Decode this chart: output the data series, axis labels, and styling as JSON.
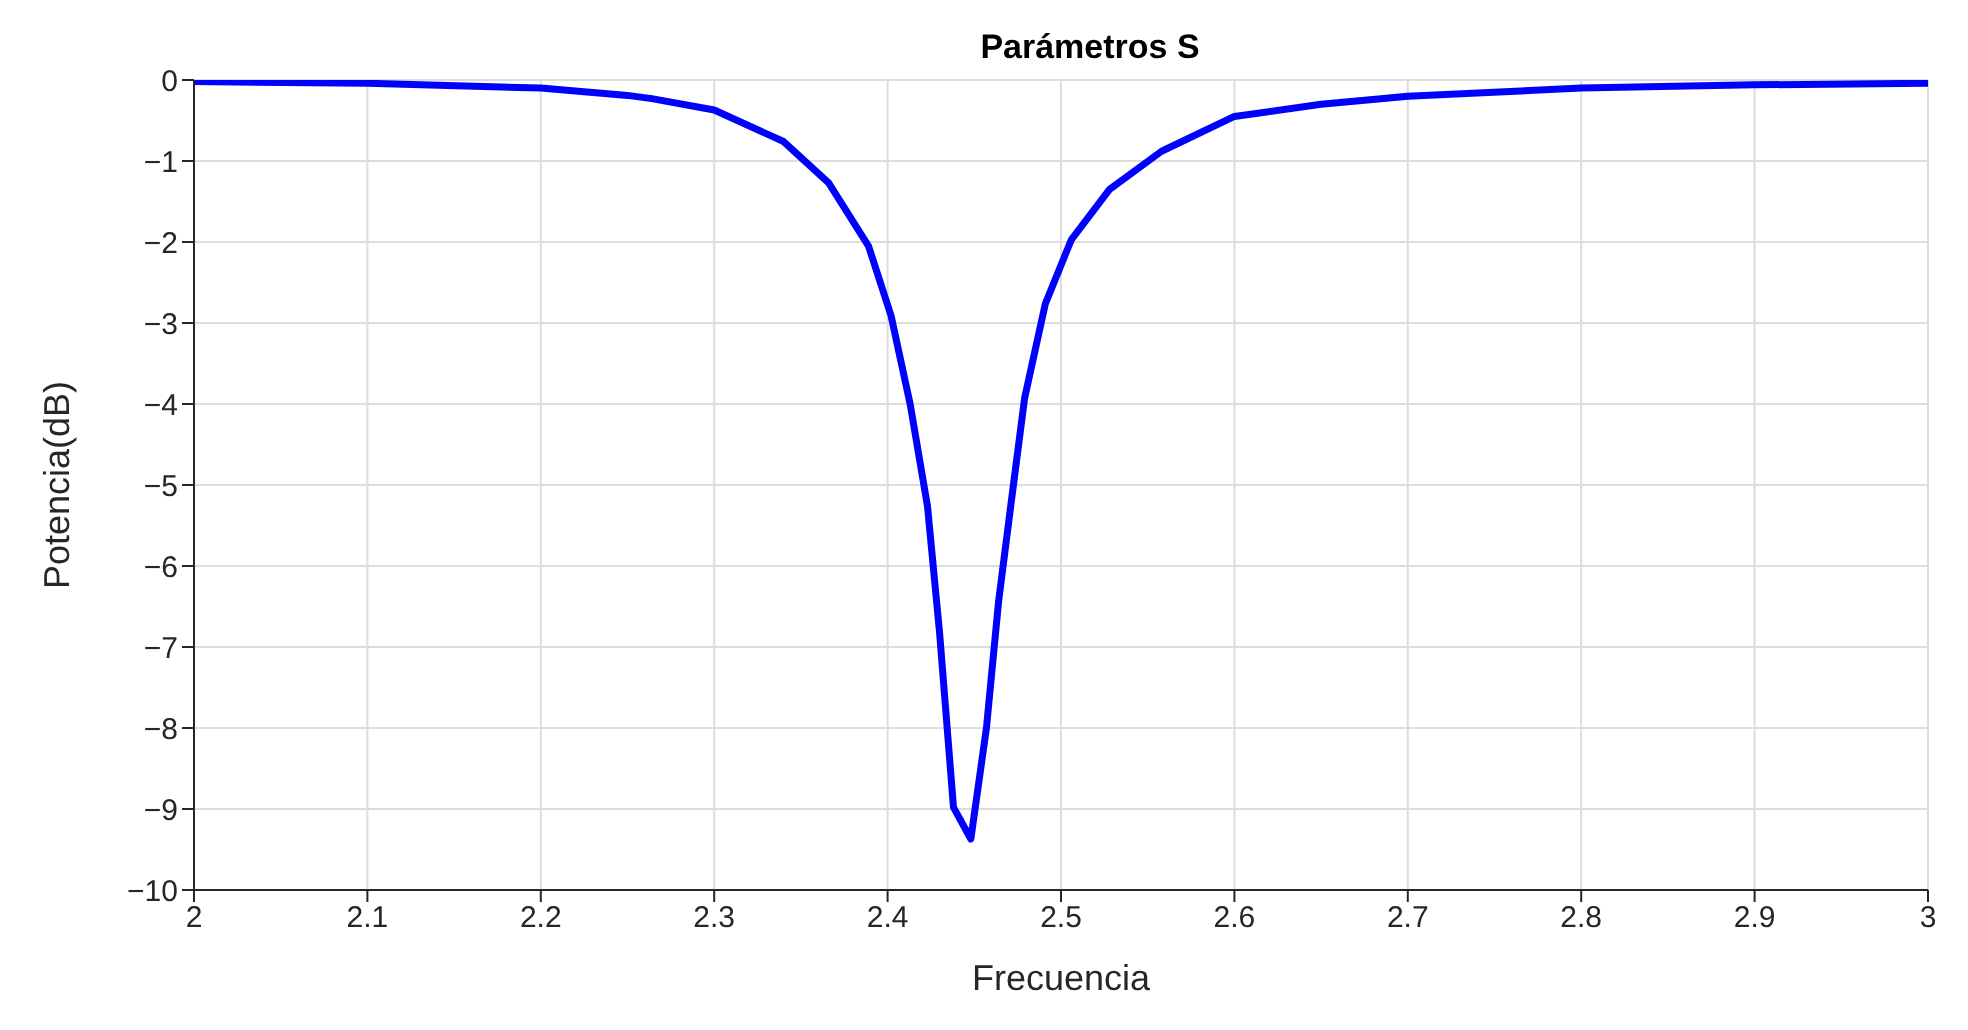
{
  "chart_data": {
    "type": "line",
    "title": "Parámetros S",
    "xlabel": "Frecuencia",
    "ylabel": "Potencia(dB)",
    "xlim": [
      2,
      3
    ],
    "xticks": [
      2,
      2.1,
      2.2,
      2.3,
      2.4,
      2.5,
      2.6,
      2.7,
      2.8,
      2.9,
      3
    ],
    "ylim": [
      -10,
      0
    ],
    "yticks": [
      -10,
      -9,
      -8,
      -7,
      -6,
      -5,
      -4,
      -3,
      -2,
      -1,
      0
    ],
    "grid": true,
    "legend": false,
    "marker": "none",
    "line_style": "solid",
    "series": [
      {
        "color": "#0000ff",
        "x": [
          2,
          2.1,
          2.2,
          2.25,
          2.264,
          2.3,
          2.34,
          2.366,
          2.389,
          2.402,
          2.413,
          2.423,
          2.43,
          2.438,
          2.448,
          2.457,
          2.464,
          2.471,
          2.479,
          2.491,
          2.506,
          2.528,
          2.558,
          2.6,
          2.65,
          2.7,
          2.8,
          2.9,
          3
        ],
        "values": [
          -0.02,
          -0.04,
          -0.1,
          -0.19,
          -0.23,
          -0.37,
          -0.76,
          -1.27,
          -2.05,
          -2.91,
          -4.0,
          -5.26,
          -6.83,
          -8.98,
          -9.37,
          -8.0,
          -6.44,
          -5.26,
          -3.93,
          -2.76,
          -1.97,
          -1.35,
          -0.88,
          -0.45,
          -0.3,
          -0.2,
          -0.1,
          -0.06,
          -0.04
        ]
      }
    ]
  }
}
